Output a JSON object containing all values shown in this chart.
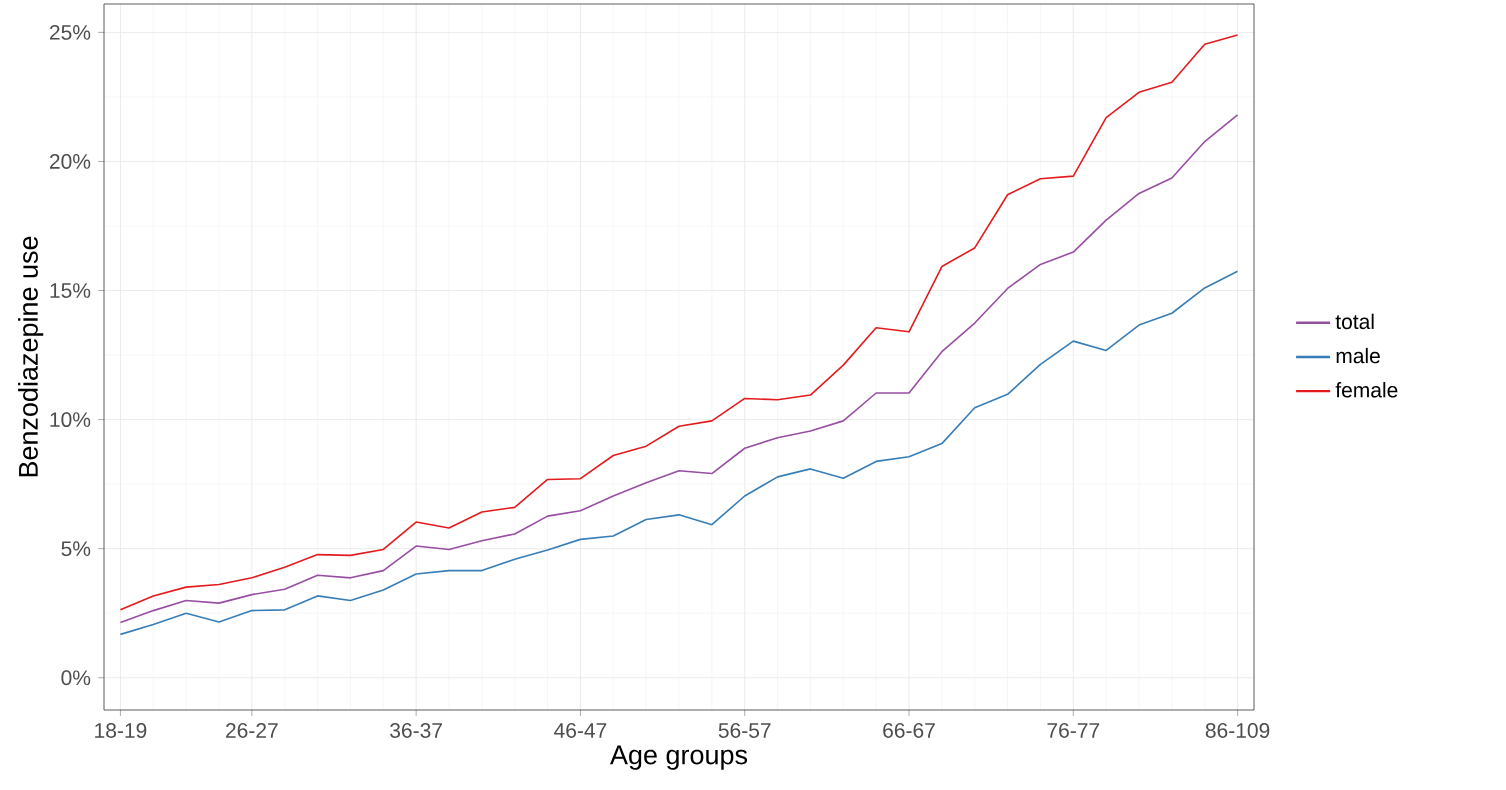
{
  "chart_data": {
    "type": "line",
    "xlabel": "Age groups",
    "ylabel": "Benzodiazepine use",
    "categories": [
      "18-19",
      null,
      null,
      null,
      "26-27",
      null,
      null,
      null,
      null,
      "36-37",
      null,
      null,
      null,
      null,
      "46-47",
      null,
      null,
      null,
      null,
      "56-57",
      null,
      null,
      null,
      null,
      "66-67",
      null,
      null,
      null,
      null,
      "76-77",
      null,
      null,
      null,
      null,
      "86-109"
    ],
    "series": [
      {
        "name": "total",
        "color": "#984ea3",
        "values": [
          2.14,
          2.6,
          2.99,
          2.89,
          3.22,
          3.43,
          3.97,
          3.87,
          4.15,
          5.1,
          4.97,
          5.31,
          5.57,
          6.26,
          6.47,
          7.04,
          7.55,
          8.02,
          7.91,
          8.89,
          9.3,
          9.56,
          9.95,
          11.03,
          11.03,
          12.63,
          13.74,
          15.08,
          16.01,
          16.49,
          17.73,
          18.76,
          19.36,
          20.77,
          21.8
        ]
      },
      {
        "name": "male",
        "color": "#377eb8",
        "values": [
          1.68,
          2.06,
          2.5,
          2.16,
          2.6,
          2.63,
          3.17,
          2.99,
          3.4,
          4.02,
          4.15,
          4.15,
          4.59,
          4.95,
          5.36,
          5.49,
          6.13,
          6.31,
          5.93,
          7.04,
          7.78,
          8.09,
          7.73,
          8.38,
          8.56,
          9.07,
          10.46,
          10.98,
          12.14,
          13.04,
          12.68,
          13.66,
          14.12,
          15.1,
          15.75
        ]
      },
      {
        "name": "female",
        "color": "#e41a1c",
        "values": [
          2.63,
          3.17,
          3.51,
          3.61,
          3.87,
          4.28,
          4.77,
          4.74,
          4.97,
          6.03,
          5.8,
          6.42,
          6.6,
          7.68,
          7.71,
          8.61,
          8.97,
          9.74,
          9.95,
          10.82,
          10.77,
          10.95,
          12.11,
          13.56,
          13.4,
          15.93,
          16.65,
          18.71,
          19.33,
          19.43,
          21.7,
          22.68,
          23.07,
          24.54,
          24.9
        ]
      }
    ],
    "ylim": [
      -1.25,
      26.1
    ],
    "yticks": [
      {
        "value": 0,
        "label": "0%"
      },
      {
        "value": 5,
        "label": "5%"
      },
      {
        "value": 10,
        "label": "10%"
      },
      {
        "value": 15,
        "label": "15%"
      },
      {
        "value": 20,
        "label": "20%"
      },
      {
        "value": 25,
        "label": "25%"
      }
    ],
    "grid": true,
    "legend": "right",
    "marker": "none",
    "line_style": "solid"
  }
}
